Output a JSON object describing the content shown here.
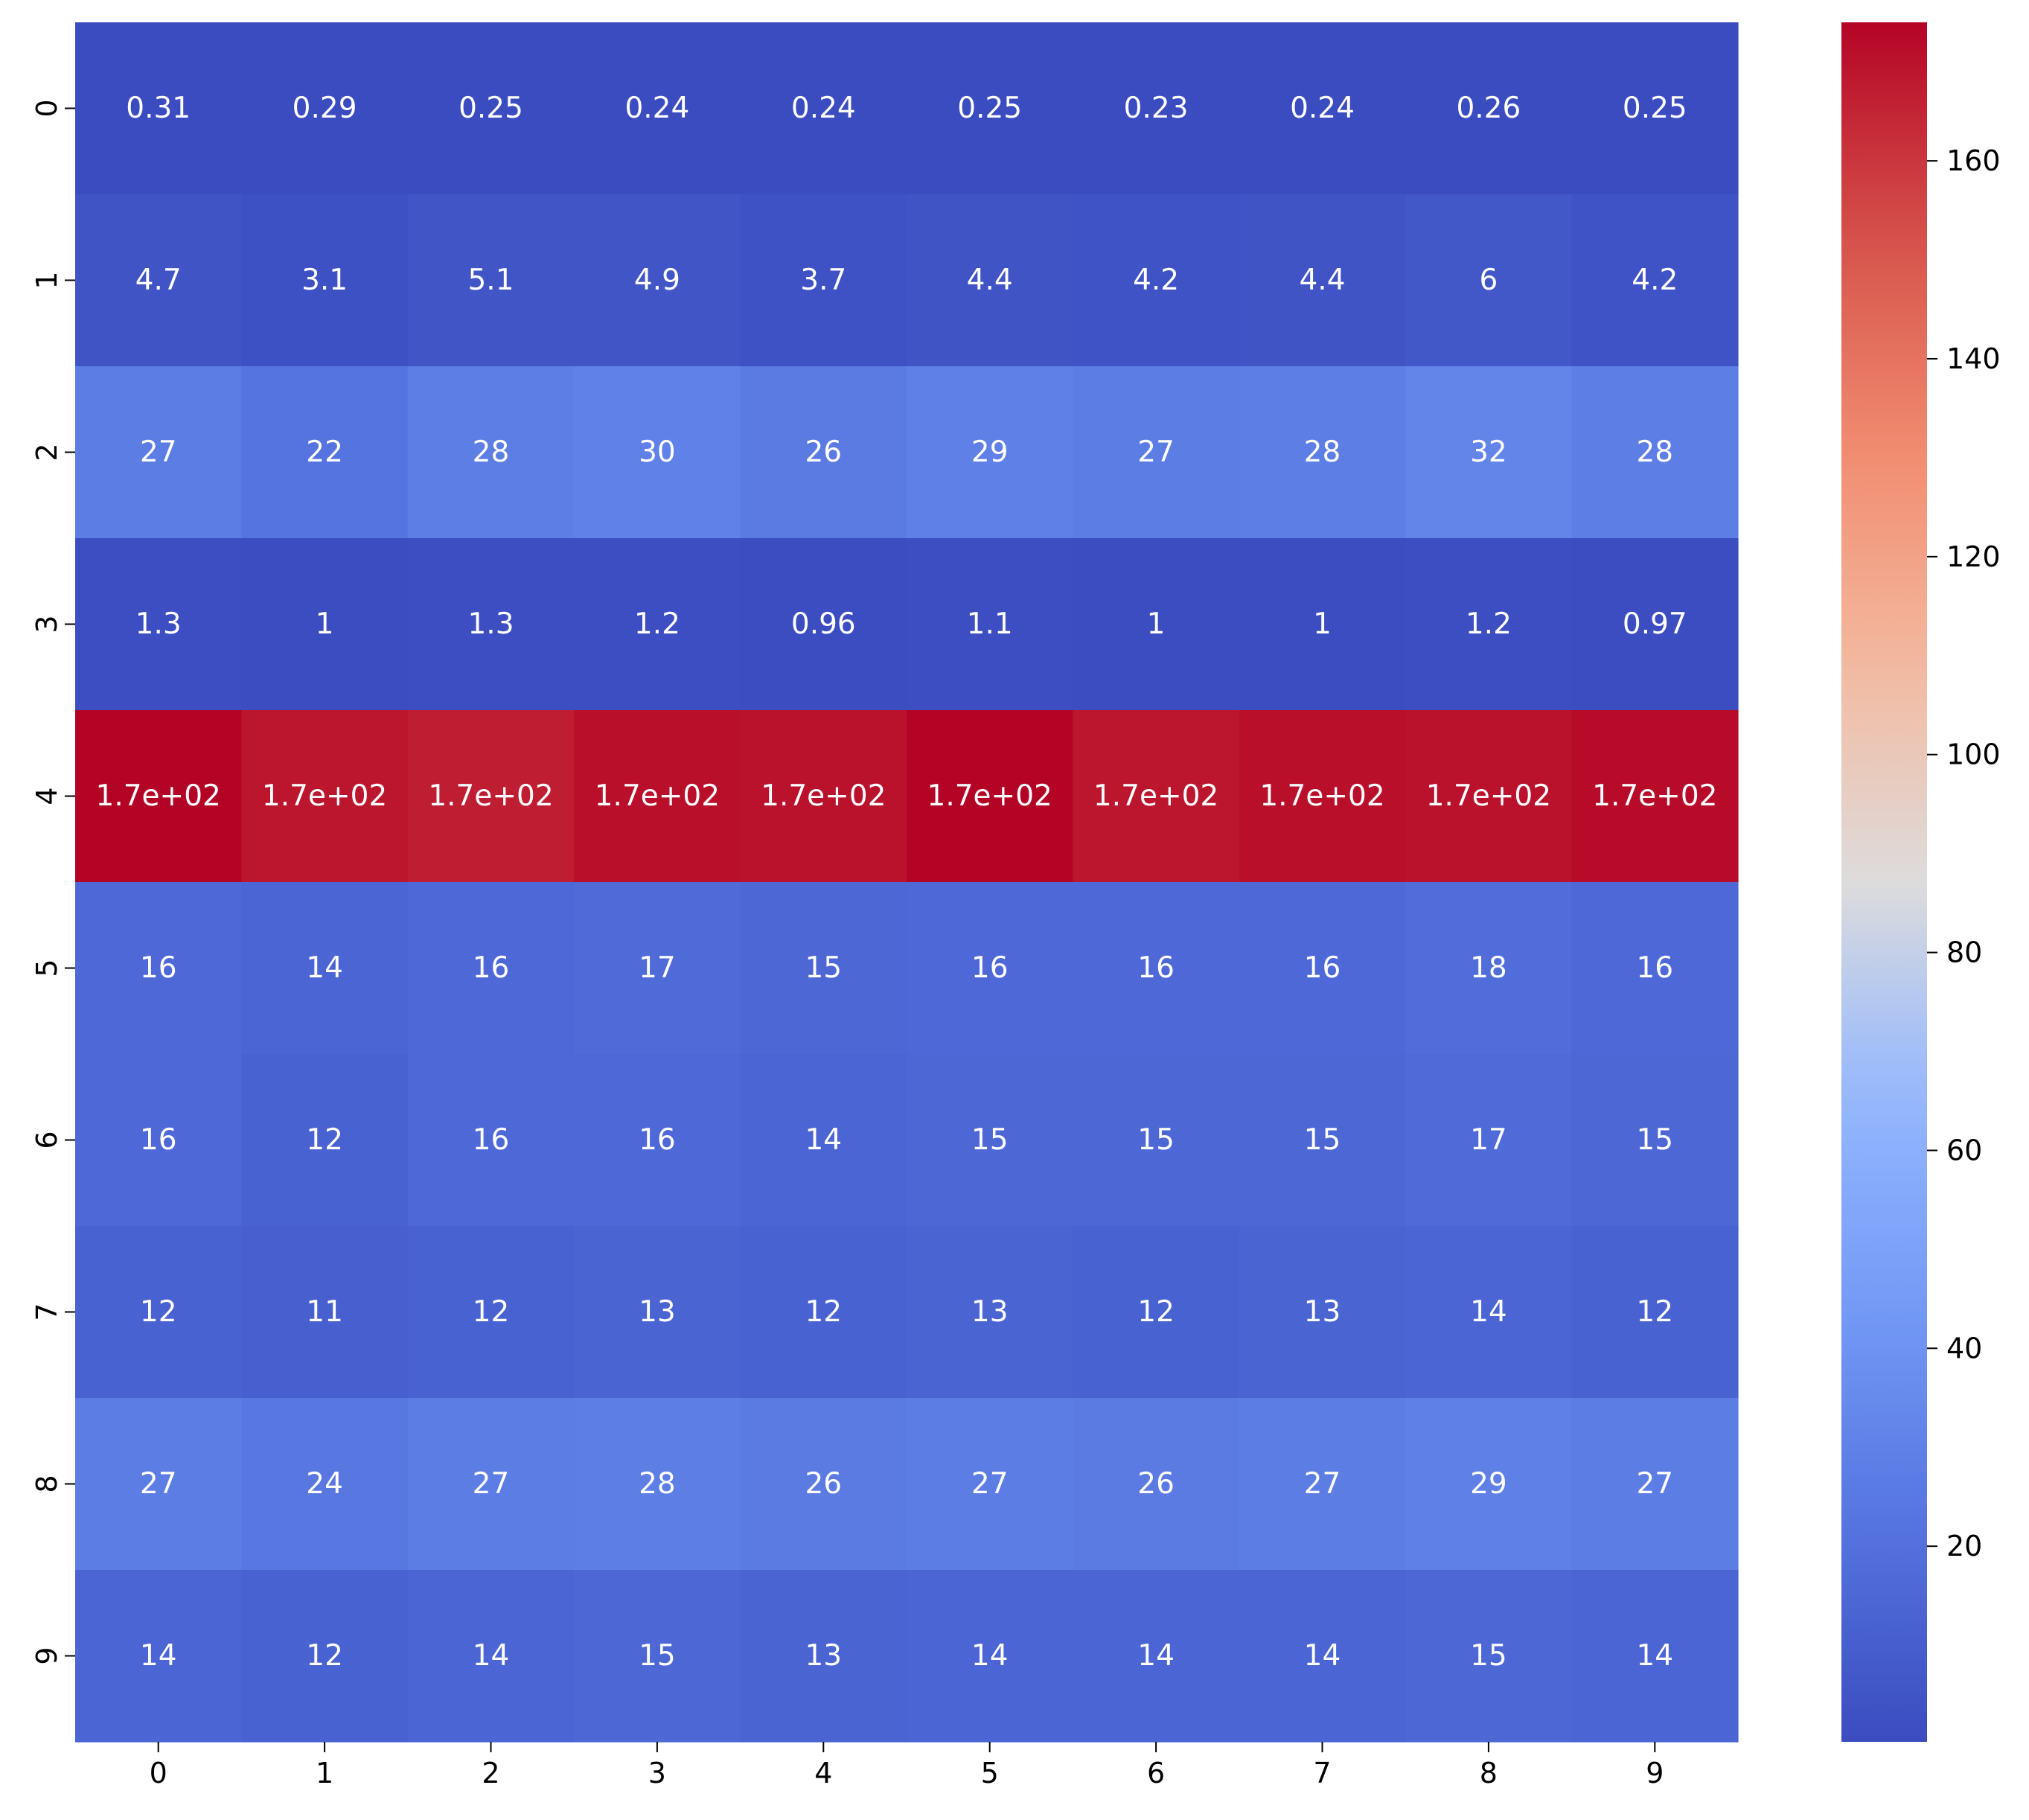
{
  "chart_data": {
    "type": "heatmap",
    "colormap": "coolwarm",
    "x_tick_labels": [
      "0",
      "1",
      "2",
      "3",
      "4",
      "5",
      "6",
      "7",
      "8",
      "9"
    ],
    "y_tick_labels": [
      "0",
      "1",
      "2",
      "3",
      "4",
      "5",
      "6",
      "7",
      "8",
      "9"
    ],
    "values": [
      [
        0.31,
        0.29,
        0.25,
        0.24,
        0.24,
        0.25,
        0.23,
        0.24,
        0.26,
        0.25
      ],
      [
        4.7,
        3.1,
        5.1,
        4.9,
        3.7,
        4.4,
        4.2,
        4.4,
        6,
        4.2
      ],
      [
        27,
        22,
        28,
        30,
        26,
        29,
        27,
        28,
        32,
        28
      ],
      [
        1.3,
        1,
        1.3,
        1.2,
        0.96,
        1.1,
        1,
        1,
        1.2,
        0.97
      ],
      [
        174,
        169,
        167,
        171,
        170,
        174,
        169,
        171,
        170,
        172
      ],
      [
        16,
        14,
        16,
        17,
        15,
        16,
        16,
        16,
        18,
        16
      ],
      [
        16,
        12,
        16,
        16,
        14,
        15,
        15,
        15,
        17,
        15
      ],
      [
        12,
        11,
        12,
        13,
        12,
        13,
        12,
        13,
        14,
        12
      ],
      [
        27,
        24,
        27,
        28,
        26,
        27,
        26,
        27,
        29,
        27
      ],
      [
        14,
        12,
        14,
        15,
        13,
        14,
        14,
        14,
        15,
        14
      ]
    ],
    "annotations": [
      [
        "0.31",
        "0.29",
        "0.25",
        "0.24",
        "0.24",
        "0.25",
        "0.23",
        "0.24",
        "0.26",
        "0.25"
      ],
      [
        "4.7",
        "3.1",
        "5.1",
        "4.9",
        "3.7",
        "4.4",
        "4.2",
        "4.4",
        "6",
        "4.2"
      ],
      [
        "27",
        "22",
        "28",
        "30",
        "26",
        "29",
        "27",
        "28",
        "32",
        "28"
      ],
      [
        "1.3",
        "1",
        "1.3",
        "1.2",
        "0.96",
        "1.1",
        "1",
        "1",
        "1.2",
        "0.97"
      ],
      [
        "1.7e+02",
        "1.7e+02",
        "1.7e+02",
        "1.7e+02",
        "1.7e+02",
        "1.7e+02",
        "1.7e+02",
        "1.7e+02",
        "1.7e+02",
        "1.7e+02"
      ],
      [
        "16",
        "14",
        "16",
        "17",
        "15",
        "16",
        "16",
        "16",
        "18",
        "16"
      ],
      [
        "16",
        "12",
        "16",
        "16",
        "14",
        "15",
        "15",
        "15",
        "17",
        "15"
      ],
      [
        "12",
        "11",
        "12",
        "13",
        "12",
        "13",
        "12",
        "13",
        "14",
        "12"
      ],
      [
        "27",
        "24",
        "27",
        "28",
        "26",
        "27",
        "26",
        "27",
        "29",
        "27"
      ],
      [
        "14",
        "12",
        "14",
        "15",
        "13",
        "14",
        "14",
        "14",
        "15",
        "14"
      ]
    ],
    "colorbar": {
      "min": 0.23,
      "max": 174,
      "ticks": [
        20,
        40,
        60,
        80,
        100,
        120,
        140,
        160
      ],
      "tick_labels": [
        "20",
        "40",
        "60",
        "80",
        "100",
        "120",
        "140",
        "160"
      ]
    },
    "title": "",
    "xlabel": "",
    "ylabel": "",
    "grid": false
  }
}
